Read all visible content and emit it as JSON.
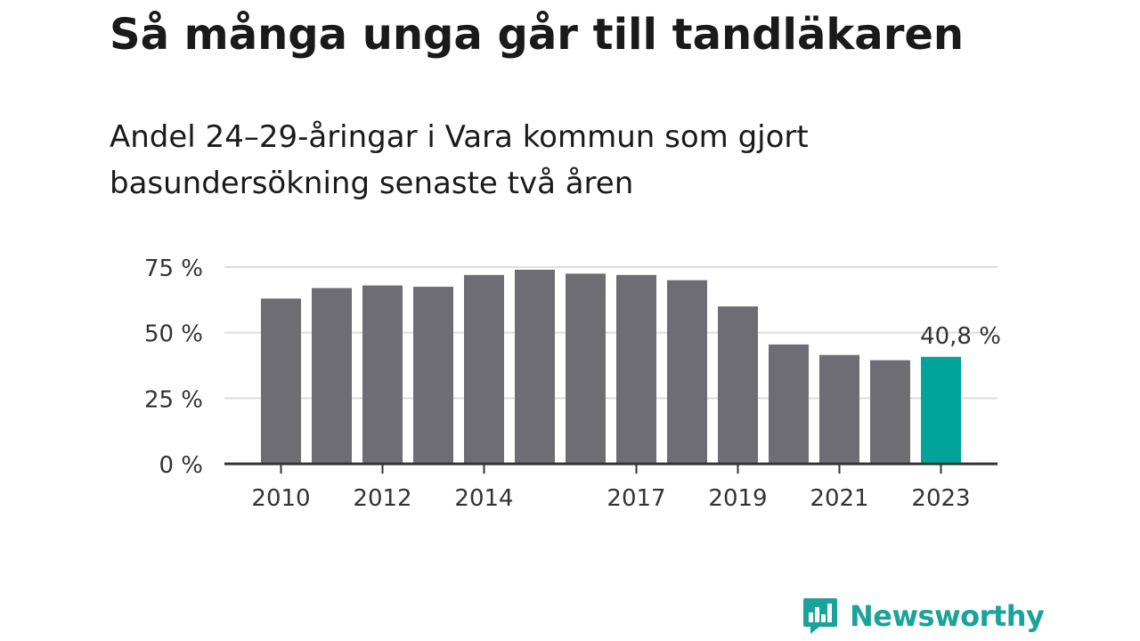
{
  "title": "Så många unga går till tandläkaren",
  "subtitle": "Andel 24–29-åringar i Vara kommun som gjort basundersökning senaste två åren",
  "brand": {
    "name": "Newsworthy",
    "icon": "newsworthy-logo-icon",
    "color": "#1aa39a"
  },
  "chart_data": {
    "type": "bar",
    "categories": [
      "2010",
      "2011",
      "2012",
      "2013",
      "2014",
      "2015",
      "2016",
      "2017",
      "2018",
      "2019",
      "2020",
      "2021",
      "2022",
      "2023"
    ],
    "values": [
      63,
      67,
      68,
      67.5,
      72,
      74,
      72.5,
      72,
      70,
      60,
      45.5,
      41.5,
      39.5,
      40.8
    ],
    "x_tick_labels": [
      "2010",
      "",
      "2012",
      "",
      "2014",
      "",
      "",
      "2017",
      "",
      "2019",
      "",
      "2021",
      "",
      "2023"
    ],
    "y_ticks": [
      {
        "value": 0,
        "label": "0 %"
      },
      {
        "value": 25,
        "label": "25 %"
      },
      {
        "value": 50,
        "label": "50 %"
      },
      {
        "value": 75,
        "label": "75 %"
      }
    ],
    "ylim": [
      0,
      75
    ],
    "grid": true,
    "annotation": {
      "category": "2023",
      "label": "40,8 %"
    },
    "colors": {
      "bar": "#6e6d73",
      "highlight": "#00a49a",
      "grid": "#dddddd",
      "axis": "#333333"
    },
    "highlight_category": "2023"
  }
}
